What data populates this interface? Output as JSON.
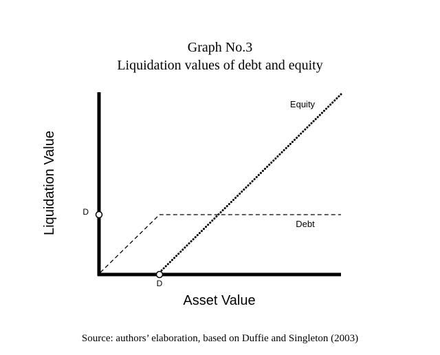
{
  "title": {
    "line1": "Graph No.3",
    "line2": "Liquidation values of debt and equity"
  },
  "source": "Source: authors’ elaboration, based on Duffie and Singleton (2003)",
  "chart_data": {
    "type": "line",
    "xlabel": "Asset Value",
    "ylabel": "Liquidation Value",
    "x_tick_labels": [
      "D"
    ],
    "y_tick_labels": [
      "D"
    ],
    "D": 1,
    "xlim": [
      0,
      4
    ],
    "ylim": [
      0,
      3.1
    ],
    "series": [
      {
        "name": "Equity",
        "style": "dotted",
        "color": "#000000",
        "x": [
          1,
          4
        ],
        "y": [
          0,
          3
        ]
      },
      {
        "name": "Debt",
        "style": "dashed",
        "color": "#000000",
        "x": [
          0,
          1,
          4
        ],
        "y": [
          0,
          1,
          1
        ]
      }
    ],
    "markers": [
      {
        "label": "D",
        "axis": "x",
        "x": 1,
        "y": 0
      },
      {
        "label": "D",
        "axis": "y",
        "x": 0,
        "y": 1
      }
    ],
    "grid": false,
    "legend": "none"
  }
}
